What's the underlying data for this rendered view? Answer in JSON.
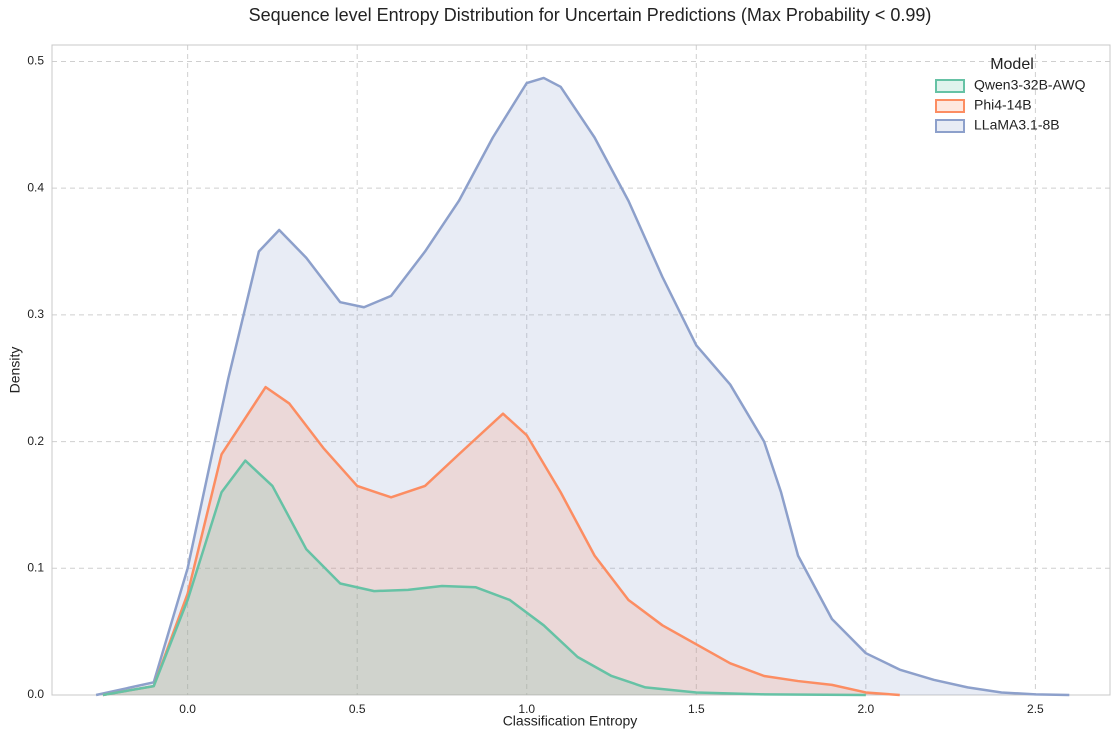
{
  "chart_data": {
    "type": "line",
    "title": "Sequence level Entropy Distribution for Uncertain Predictions (Max Probability < 0.99)",
    "x_label": "Classification Entropy",
    "y_label": "Density",
    "legend_title": "Model",
    "legend": "upper right",
    "grid": true,
    "fill": true,
    "xlim": [
      -0.4,
      2.72
    ],
    "ylim": [
      0,
      0.513
    ],
    "xticks": [
      {
        "value": 0,
        "label": "0.0"
      },
      0.5,
      {
        "value": 1,
        "label": "1.0"
      },
      1.5,
      {
        "value": 2,
        "label": "2.0"
      },
      2.5
    ],
    "yticks": [
      {
        "value": 0,
        "label": "0.0"
      },
      0.1,
      0.2,
      0.3,
      0.4,
      0.5
    ],
    "series": [
      {
        "name": "Qwen3-32B-AWQ",
        "color": "#66c2a5",
        "x": [
          -0.25,
          -0.1,
          0,
          0.1,
          0.17,
          0.25,
          0.35,
          0.45,
          0.55,
          0.65,
          0.75,
          0.85,
          0.95,
          1.05,
          1.15,
          1.25,
          1.35,
          1.5,
          1.7,
          2.0
        ],
        "values": [
          0,
          0.007,
          0.075,
          0.16,
          0.185,
          0.165,
          0.115,
          0.088,
          0.082,
          0.083,
          0.086,
          0.085,
          0.075,
          0.055,
          0.03,
          0.015,
          0.006,
          0.002,
          0.0005,
          0
        ]
      },
      {
        "name": "Phi4-14B",
        "color": "#fc8d62",
        "x": [
          -0.25,
          -0.1,
          0,
          0.1,
          0.23,
          0.3,
          0.4,
          0.5,
          0.6,
          0.7,
          0.8,
          0.93,
          1.0,
          1.1,
          1.2,
          1.3,
          1.4,
          1.5,
          1.6,
          1.7,
          1.8,
          1.9,
          2.0,
          2.1
        ],
        "values": [
          0,
          0.007,
          0.08,
          0.19,
          0.243,
          0.23,
          0.195,
          0.165,
          0.156,
          0.165,
          0.19,
          0.222,
          0.205,
          0.16,
          0.11,
          0.075,
          0.055,
          0.04,
          0.025,
          0.015,
          0.011,
          0.008,
          0.002,
          0
        ]
      },
      {
        "name": "LLaMA3.1-8B",
        "color": "#8da0cb",
        "x": [
          -0.27,
          -0.1,
          0,
          0.12,
          0.21,
          0.27,
          0.35,
          0.45,
          0.52,
          0.6,
          0.7,
          0.8,
          0.9,
          1.0,
          1.05,
          1.1,
          1.2,
          1.3,
          1.4,
          1.5,
          1.6,
          1.7,
          1.75,
          1.8,
          1.9,
          2.0,
          2.1,
          2.2,
          2.3,
          2.4,
          2.5,
          2.6
        ],
        "values": [
          0,
          0.01,
          0.1,
          0.25,
          0.35,
          0.367,
          0.345,
          0.31,
          0.306,
          0.315,
          0.35,
          0.39,
          0.44,
          0.483,
          0.487,
          0.48,
          0.44,
          0.39,
          0.33,
          0.276,
          0.245,
          0.2,
          0.16,
          0.11,
          0.06,
          0.033,
          0.02,
          0.012,
          0.006,
          0.002,
          0.0005,
          0
        ]
      }
    ]
  }
}
